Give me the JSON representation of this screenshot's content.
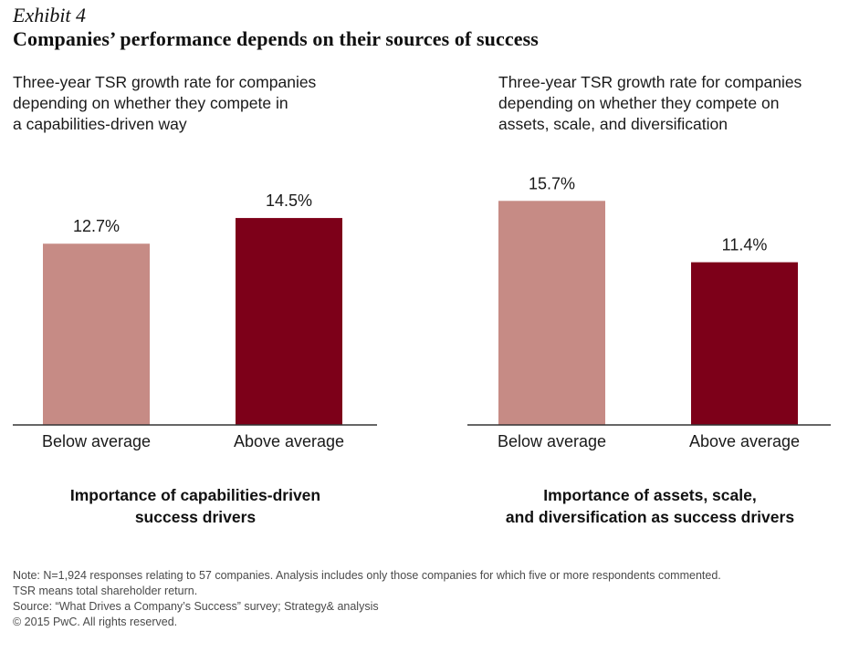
{
  "exhibit_label": "Exhibit 4",
  "title": "Companies’ performance depends on their sources of success",
  "colors": {
    "below": "#c68b85",
    "above": "#7d0019",
    "axis": "#333333"
  },
  "chart_data": [
    {
      "type": "bar",
      "title_lines": [
        "Three-year TSR growth rate for companies",
        "depending on whether they compete in",
        "a capabilities-driven way"
      ],
      "categories": [
        "Below average",
        "Above average"
      ],
      "values": [
        12.7,
        14.5
      ],
      "value_labels": [
        "12.7%",
        "14.5%"
      ],
      "xlabel_lines": [
        "Importance of capabilities-driven",
        "success drivers"
      ],
      "ylabel": "",
      "ylim": [
        0,
        16
      ],
      "grid": false,
      "legend": "none"
    },
    {
      "type": "bar",
      "title_lines": [
        "Three-year TSR growth rate for companies",
        "depending on whether they compete on",
        "assets, scale, and diversification"
      ],
      "categories": [
        "Below average",
        "Above average"
      ],
      "values": [
        15.7,
        11.4
      ],
      "value_labels": [
        "15.7%",
        "11.4%"
      ],
      "xlabel_lines": [
        "Importance of assets, scale,",
        "and diversification as success drivers"
      ],
      "ylabel": "",
      "ylim": [
        0,
        16
      ],
      "grid": false,
      "legend": "none"
    }
  ],
  "notes": [
    "Note: N=1,924 responses relating to 57 companies. Analysis includes only those companies for which five or more respondents commented.",
    "TSR means total shareholder return.",
    "Source: “What Drives a Company’s Success” survey; Strategy& analysis",
    "© 2015 PwC. All rights reserved."
  ]
}
